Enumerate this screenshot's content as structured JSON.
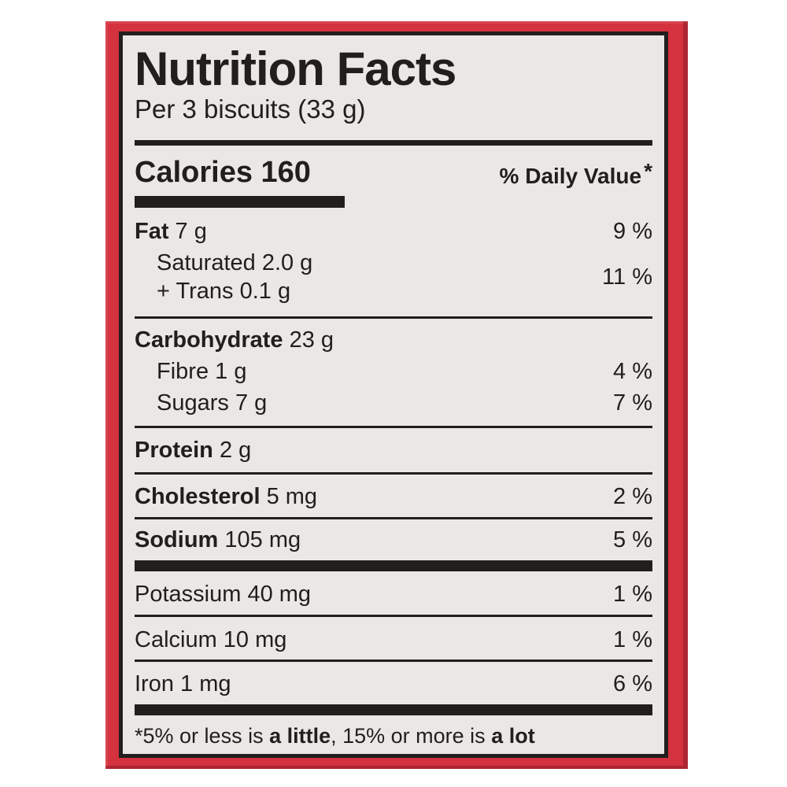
{
  "colors": {
    "frame_red": "#d4323e",
    "label_background": "#e9e8e6",
    "ink_black": "#211e1d",
    "page_background": "#fefefe"
  },
  "label": {
    "title": "Nutrition Facts",
    "serving": "Per 3 biscuits (33 g)",
    "calories_label": "Calories",
    "calories_value": "160",
    "daily_value_header": "% Daily Value",
    "daily_value_star": "*",
    "rows": {
      "fat": {
        "bold": "Fat",
        "rest": " 7 g",
        "pct": "9 %"
      },
      "saturated": {
        "text": "Saturated 2.0 g"
      },
      "trans": {
        "text": "+ Trans 0.1 g"
      },
      "sat_trans_pct": "11 %",
      "carbohydrate": {
        "bold": "Carbohydrate",
        "rest": " 23 g"
      },
      "fibre": {
        "text": "Fibre 1 g",
        "pct": "4 %"
      },
      "sugars": {
        "text": "Sugars 7 g",
        "pct": "7 %"
      },
      "protein": {
        "bold": "Protein",
        "rest": " 2 g"
      },
      "cholesterol": {
        "bold": "Cholesterol",
        "rest": " 5 mg",
        "pct": "2 %"
      },
      "sodium": {
        "bold": "Sodium",
        "rest": " 105 mg",
        "pct": "5 %"
      },
      "potassium": {
        "text": "Potassium 40 mg",
        "pct": "1 %"
      },
      "calcium": {
        "text": "Calcium 10 mg",
        "pct": "1 %"
      },
      "iron": {
        "text": "Iron 1 mg",
        "pct": "6 %"
      }
    },
    "footnote": {
      "star": "*",
      "part1": "5% or less is ",
      "bold1": "a little",
      "part2": ", 15% or more is ",
      "bold2": "a lot"
    }
  }
}
